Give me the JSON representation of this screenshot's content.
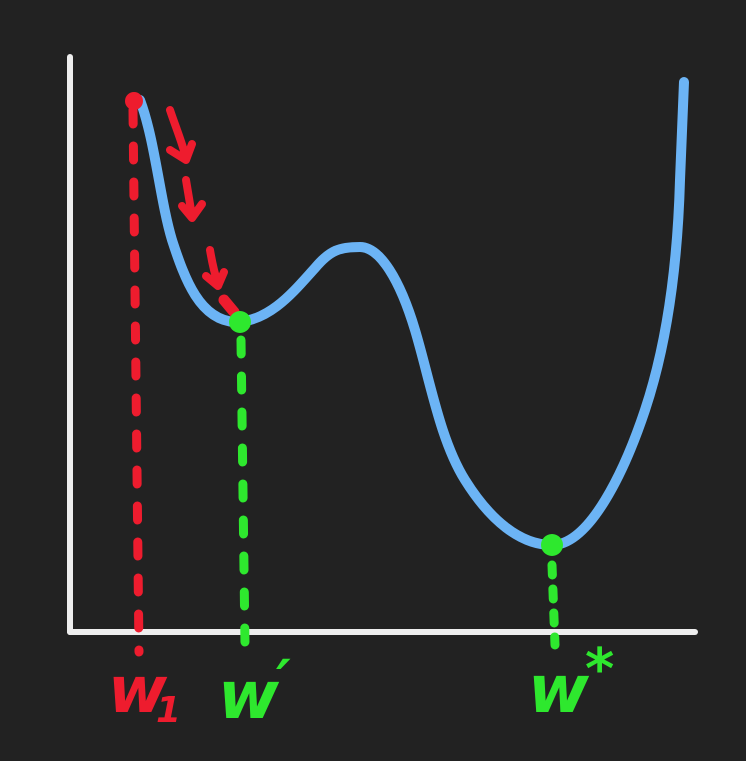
{
  "colors": {
    "background": "#222222",
    "axes": "#eeeeee",
    "curve": "#6cb4f5",
    "start_marker": "#ee1c2e",
    "minima_marker": "#2ee82e"
  },
  "labels": {
    "start": {
      "base": "w",
      "sub": "1"
    },
    "local_min": {
      "base": "w",
      "prime": "′"
    },
    "global_min": {
      "base": "w",
      "star": "*"
    }
  }
}
